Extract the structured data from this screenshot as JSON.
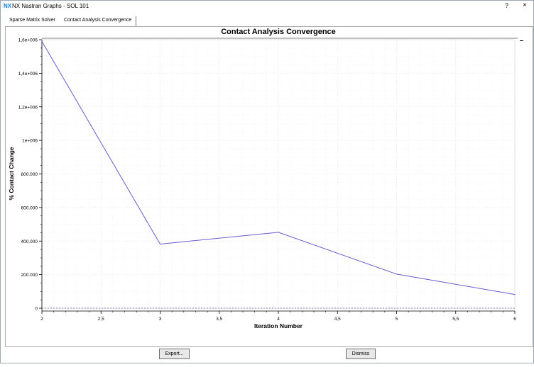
{
  "window": {
    "logo": "NX",
    "title": "NX Nastran Graphs - SOL 101",
    "help": "?",
    "close": "×"
  },
  "tabs": [
    {
      "label": "Sparse Matrix Solver"
    },
    {
      "label": "Contact Analysis Convergence"
    }
  ],
  "buttons": {
    "export": "Export...",
    "dismiss": "Dismiss"
  },
  "chart_data": {
    "type": "line",
    "title": "Contact Analysis Convergence",
    "xlabel": "Iteration Number",
    "ylabel": "% Contact Change",
    "x": [
      2,
      3,
      4,
      5,
      6
    ],
    "series": [
      {
        "values": [
          1590000,
          382000,
          452000,
          203000,
          82000
        ],
        "color": "#6a5acd"
      }
    ],
    "xlim": [
      2,
      6
    ],
    "ylim": [
      0,
      1600000
    ],
    "x_ticks": [
      2,
      2.5,
      3,
      3.5,
      4,
      4.5,
      5,
      5.5,
      6
    ],
    "x_tick_labels": [
      "2",
      "2,5",
      "3",
      "3,5",
      "4",
      "4,5",
      "5",
      "5,5",
      "6"
    ],
    "y_ticks": [
      0,
      200000,
      400000,
      600000,
      800000,
      1000000,
      1200000,
      1400000,
      1600000
    ],
    "y_tick_labels": [
      "0",
      "200.000",
      "400.000",
      "600.000",
      "800.000",
      "1e+006",
      "1,2e+006",
      "1,4e+006",
      "1,6e+006"
    ],
    "baseline": {
      "value": 0,
      "style": "dashed",
      "color": "#6a5acd"
    },
    "grid": true,
    "legend": "none"
  }
}
